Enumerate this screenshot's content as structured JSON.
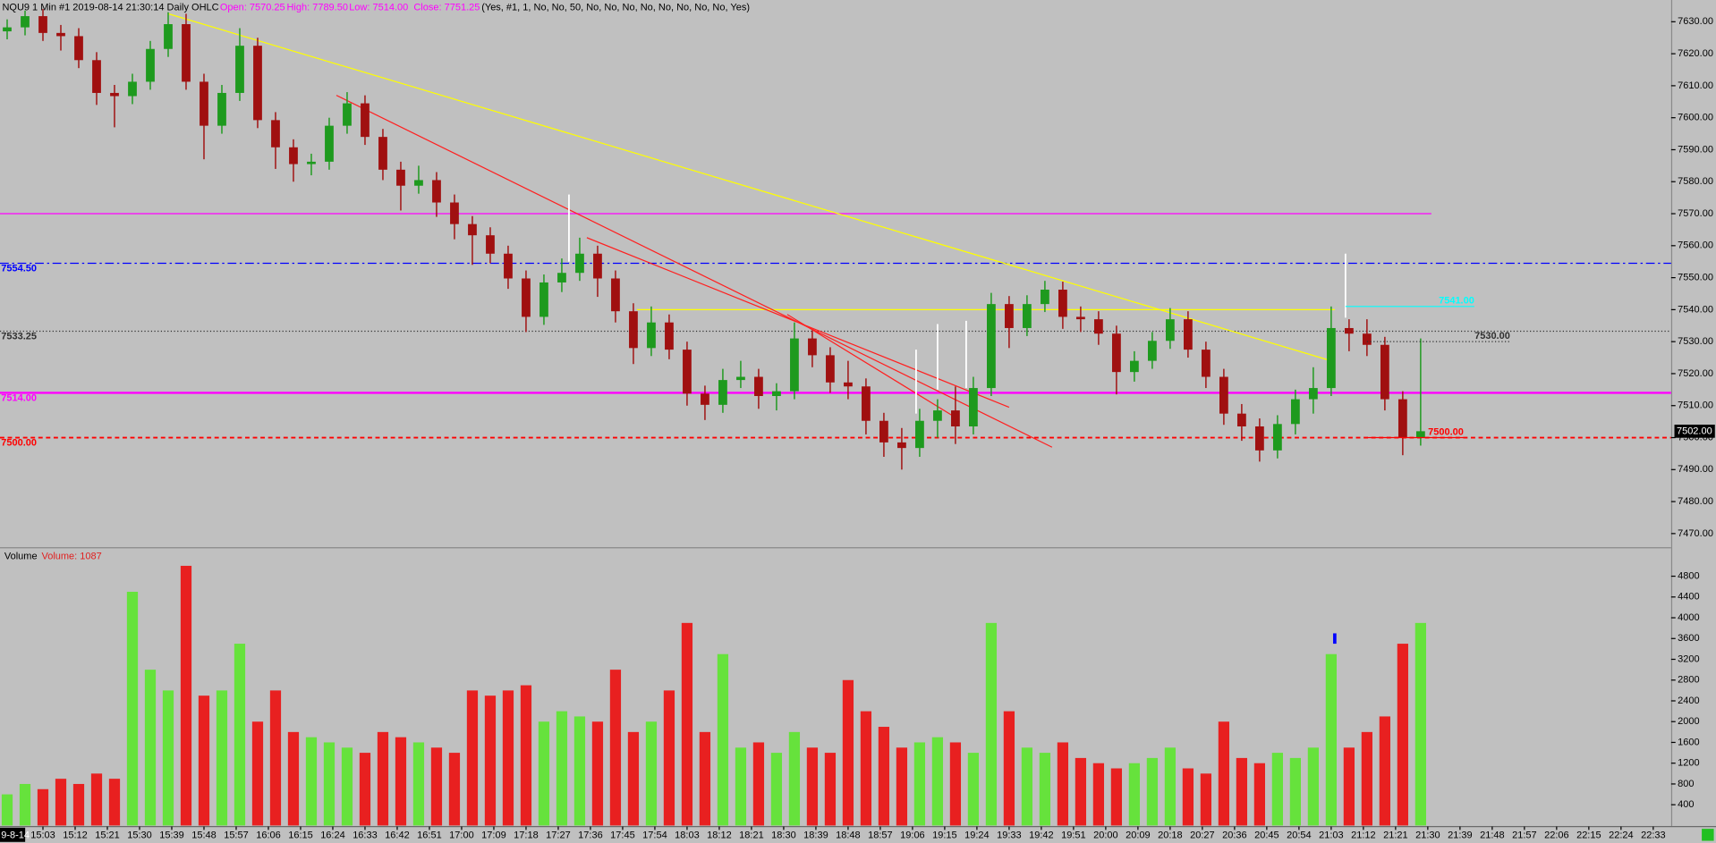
{
  "chart_data": {
    "type": "candlestick",
    "title": "NQU9  1 Min  #1 2019-08-14 21:30:14 Daily OHLC",
    "ohlc_labels": [
      {
        "text": "Open: 7570.25",
        "color": "#ff00ff"
      },
      {
        "text": "High: 7789.50",
        "color": "#ff00ff"
      },
      {
        "text": "Low: 7514.00",
        "color": "#ff00ff"
      },
      {
        "text": "Close: 7751.25",
        "color": "#ff00ff"
      }
    ],
    "settings_text": "(Yes, #1, 1, No, No, 50, No, No, No, No, No, No, No, No, Yes)",
    "date_label": "9-8-14",
    "up_color": "#1e9a1e",
    "down_color": "#a01010",
    "x": [
      "14:53",
      "14:58",
      "15:03",
      "15:08",
      "15:13",
      "15:18",
      "15:23",
      "15:28",
      "15:33",
      "15:38",
      "15:43",
      "15:48",
      "15:53",
      "15:58",
      "16:03",
      "16:08",
      "16:13",
      "16:18",
      "16:23",
      "16:28",
      "16:33",
      "16:38",
      "16:43",
      "16:48",
      "16:53",
      "16:58",
      "17:03",
      "17:08",
      "17:13",
      "17:18",
      "17:23",
      "17:28",
      "17:33",
      "17:38",
      "17:43",
      "17:48",
      "17:53",
      "17:58",
      "18:03",
      "18:08",
      "18:13",
      "18:18",
      "18:23",
      "18:28",
      "18:33",
      "18:38",
      "18:43",
      "18:48",
      "18:53",
      "18:58",
      "19:03",
      "19:08",
      "19:13",
      "19:18",
      "19:23",
      "19:28",
      "19:33",
      "19:38",
      "19:43",
      "19:48",
      "19:53",
      "19:58",
      "20:03",
      "20:08",
      "20:13",
      "20:18",
      "20:23",
      "20:28",
      "20:33",
      "20:38",
      "20:43",
      "20:48",
      "20:53",
      "20:58",
      "21:03",
      "21:08",
      "21:13",
      "21:18",
      "21:23",
      "21:28"
    ],
    "open": [
      7627,
      7628.25,
      7631.75,
      7626.5,
      7625.5,
      7618,
      7607.75,
      7606.75,
      7611.25,
      7621.5,
      7629.25,
      7611.25,
      7597.5,
      7607.75,
      7622.5,
      7599.25,
      7590.75,
      7585.5,
      7586.25,
      7597.5,
      7604.5,
      7594,
      7583.75,
      7578.75,
      7580.5,
      7573.5,
      7566.75,
      7563.25,
      7557.5,
      7549.75,
      7537.75,
      7548.5,
      7551.5,
      7557.5,
      7549.75,
      7539.5,
      7528,
      7536,
      7527.5,
      7513.75,
      7510.25,
      7518,
      7519,
      7513,
      7514.5,
      7531,
      7525.75,
      7517.25,
      7516,
      7505.25,
      7498.5,
      7496.75,
      7505.25,
      7508.5,
      7503.5,
      7515.5,
      7541.75,
      7534.25,
      7541.75,
      7546.25,
      7537.75,
      7537,
      7532.5,
      7520.5,
      7524,
      7530.25,
      7537,
      7527.5,
      7519,
      7507.5,
      7503.5,
      7496,
      7504.25,
      7512,
      7515.5,
      7534.25,
      7532.5,
      7529,
      7512,
      7500
    ],
    "high": [
      7630.75,
      7633.5,
      7634,
      7629,
      7628,
      7620.5,
      7610.25,
      7613.75,
      7624,
      7633,
      7632.5,
      7613.75,
      7610.25,
      7628,
      7625,
      7601.75,
      7593.25,
      7588.75,
      7600,
      7608,
      7607,
      7596.5,
      7586.25,
      7585,
      7583,
      7576,
      7569.25,
      7565.75,
      7560,
      7552.25,
      7551,
      7556,
      7562.5,
      7560,
      7552.25,
      7542,
      7541,
      7538.5,
      7530,
      7516.25,
      7521.5,
      7524,
      7521.5,
      7517,
      7536,
      7533.5,
      7528.25,
      7524,
      7518.5,
      7507.75,
      7503,
      7509,
      7512,
      7516,
      7519,
      7545.25,
      7544.25,
      7544.5,
      7549,
      7548.75,
      7541,
      7539.5,
      7535,
      7527,
      7533,
      7540.5,
      7539.5,
      7530,
      7521.5,
      7510.5,
      7506,
      7507,
      7515,
      7522,
      7541,
      7537,
      7537,
      7531.5,
      7514.5,
      7531
    ],
    "low": [
      7624.5,
      7625.75,
      7624,
      7621,
      7615.5,
      7604,
      7597,
      7604.25,
      7608.75,
      7619,
      7608.75,
      7587,
      7595,
      7605.25,
      7596.75,
      7584,
      7580,
      7582,
      7583.75,
      7595,
      7591.5,
      7580.5,
      7571,
      7576.25,
      7569,
      7562,
      7554,
      7554.5,
      7546.5,
      7533,
      7535.25,
      7545.5,
      7549,
      7544,
      7536,
      7523,
      7525.5,
      7524.5,
      7510,
      7505.5,
      7507.75,
      7515.5,
      7509,
      7508.5,
      7512,
      7522,
      7514,
      7512,
      7501,
      7494,
      7490,
      7494,
      7500,
      7498,
      7501,
      7513,
      7528,
      7531.75,
      7539.25,
      7534,
      7533,
      7529,
      7513.5,
      7517.5,
      7521.5,
      7527.75,
      7525,
      7515.5,
      7504,
      7499,
      7492.5,
      7493.5,
      7501,
      7507.5,
      7513,
      7527,
      7525.5,
      7508.5,
      7494.5,
      7497.5
    ],
    "close": [
      7628.25,
      7631.75,
      7626.5,
      7625.5,
      7618,
      7607.75,
      7606.75,
      7611.25,
      7621.5,
      7629.25,
      7611.25,
      7597.5,
      7607.75,
      7622.5,
      7599.25,
      7590.75,
      7585.5,
      7586.25,
      7597.5,
      7604.5,
      7594,
      7583.75,
      7578.75,
      7580.5,
      7573.5,
      7566.75,
      7563.25,
      7557.5,
      7549.75,
      7537.75,
      7548.5,
      7551.5,
      7557.5,
      7549.75,
      7539.5,
      7528,
      7536,
      7527.5,
      7513.75,
      7510.25,
      7518,
      7519,
      7513,
      7514.5,
      7531,
      7525.75,
      7517.25,
      7516,
      7505.25,
      7498.5,
      7496.75,
      7505.25,
      7508.5,
      7503.5,
      7515.5,
      7541.75,
      7534.25,
      7541.75,
      7546.25,
      7537.75,
      7537,
      7532.5,
      7520.5,
      7524,
      7530.25,
      7537,
      7527.5,
      7519,
      7507.5,
      7503.5,
      7496,
      7504.25,
      7512,
      7515.5,
      7534.25,
      7532.5,
      7529,
      7512,
      7500,
      7502
    ],
    "xlim": [
      "14:51",
      "22:38"
    ],
    "xticks": [
      "15:03",
      "15:12",
      "15:21",
      "15:30",
      "15:39",
      "15:48",
      "15:57",
      "16:06",
      "16:15",
      "16:24",
      "16:33",
      "16:42",
      "16:51",
      "17:00",
      "17:09",
      "17:18",
      "17:27",
      "17:36",
      "17:45",
      "17:54",
      "18:03",
      "18:12",
      "18:21",
      "18:30",
      "18:39",
      "18:48",
      "18:57",
      "19:06",
      "19:15",
      "19:24",
      "19:33",
      "19:42",
      "19:51",
      "20:00",
      "20:09",
      "20:18",
      "20:27",
      "20:36",
      "20:45",
      "20:54",
      "21:03",
      "21:12",
      "21:21",
      "21:30",
      "21:39",
      "21:48",
      "21:57",
      "22:06",
      "22:15",
      "22:24",
      "22:33"
    ],
    "ylim": [
      7465.9,
      7636.8
    ],
    "yticks": [
      {
        "value": 7470,
        "label": "7470.00"
      },
      {
        "value": 7480,
        "label": "7480.00"
      },
      {
        "value": 7490,
        "label": "7490.00"
      },
      {
        "value": 7500,
        "label": "7500.00"
      },
      {
        "value": 7510,
        "label": "7510.00"
      },
      {
        "value": 7520,
        "label": "7520.00"
      },
      {
        "value": 7530,
        "label": "7530.00"
      },
      {
        "value": 7540,
        "label": "7540.00"
      },
      {
        "value": 7550,
        "label": "7550.00"
      },
      {
        "value": 7560,
        "label": "7560.00"
      },
      {
        "value": 7570,
        "label": "7570.00"
      },
      {
        "value": 7580,
        "label": "7580.00"
      },
      {
        "value": 7590,
        "label": "7590.00"
      },
      {
        "value": 7600,
        "label": "7600.00"
      },
      {
        "value": 7610,
        "label": "7610.00"
      },
      {
        "value": 7620,
        "label": "7620.00"
      },
      {
        "value": 7630,
        "label": "7630.00"
      }
    ],
    "levels": [
      {
        "value": 7570,
        "color": "#ff00ff",
        "style": "solid",
        "width": 1,
        "end": "21:31"
      },
      {
        "value": 7554.5,
        "label": "7554.50",
        "color": "#0000ff",
        "style": "dashdot",
        "width": 1
      },
      {
        "value": 7533.25,
        "label": "7533.25",
        "color": "#303030",
        "style": "dotted",
        "width": 1
      },
      {
        "value": 7514,
        "label": "7514.00",
        "color": "#ff00ff",
        "style": "solid",
        "width": 2
      },
      {
        "value": 7500,
        "label": "7500.00",
        "color": "#ff0000",
        "style": "dashed",
        "width": 1.5
      }
    ],
    "trendlines": [
      {
        "start": [
          "15:38",
          7632.5
        ],
        "end": [
          "21:03",
          7524
        ],
        "color": "#ffff00"
      },
      {
        "start": [
          "17:49",
          7540
        ],
        "end": [
          "21:04",
          7540
        ],
        "color": "#ffff00"
      },
      {
        "start": [
          "16:25",
          7607
        ],
        "end": [
          "19:45",
          7497
        ],
        "color": "#ff2020"
      },
      {
        "start": [
          "17:35",
          7562.5
        ],
        "end": [
          "19:33",
          7509.5
        ],
        "color": "#ff2020"
      },
      {
        "start": [
          "18:31",
          7538.5
        ],
        "end": [
          "19:17",
          7507
        ],
        "color": "#ff2020"
      }
    ],
    "spikes": [
      {
        "x": "17:30",
        "low": 7555,
        "high": 7576
      },
      {
        "x": "19:07",
        "low": 7507.5,
        "high": 7527.5
      },
      {
        "x": "19:13",
        "low": 7515,
        "high": 7535.5
      },
      {
        "x": "19:21",
        "low": 7515.5,
        "high": 7536.5
      },
      {
        "x": "21:07",
        "low": 7537.5,
        "high": 7557.5
      }
    ],
    "segments": [
      {
        "value": 7541,
        "label": "7541.00",
        "start": "21:07",
        "end": "21:43",
        "color": "#00ffff",
        "style": "solid"
      },
      {
        "value": 7530,
        "label": "7530.00",
        "start": "21:13",
        "end": "21:53",
        "color": "#303030",
        "style": "dotted"
      },
      {
        "value": 7500,
        "label": "7500.00",
        "start": "21:13",
        "end": "21:40",
        "color": "#ff0000",
        "style": "solid"
      }
    ],
    "last_price": {
      "value": 7502,
      "label": "7502.00"
    },
    "volume": {
      "title": "Volume",
      "label": "Volume: 1087",
      "up_color": "#66e23c",
      "down_color": "#e82020",
      "values": [
        600,
        800,
        700,
        900,
        800,
        1000,
        900,
        4500,
        3000,
        2600,
        5000,
        2500,
        2600,
        3500,
        2000,
        2600,
        1800,
        1700,
        1600,
        1500,
        1400,
        1800,
        1700,
        1600,
        1500,
        1400,
        2600,
        2500,
        2600,
        2700,
        2000,
        2200,
        2100,
        2000,
        3000,
        1800,
        2000,
        2600,
        3900,
        1800,
        3300,
        1500,
        1600,
        1400,
        1800,
        1500,
        1400,
        2800,
        2200,
        1900,
        1500,
        1600,
        1700,
        1600,
        1400,
        3900,
        2200,
        1500,
        1400,
        1600,
        1300,
        1200,
        1100,
        1200,
        1300,
        1500,
        1100,
        1000,
        2000,
        1300,
        1200,
        1400,
        1300,
        1500,
        3300,
        1500,
        1800,
        2100,
        3500,
        3900
      ],
      "ylim": [
        0,
        5305
      ],
      "yticks": [
        400,
        800,
        1200,
        1600,
        2000,
        2400,
        2800,
        3200,
        3600,
        4000,
        4400,
        4800
      ],
      "marker": {
        "x": "21:04",
        "low": 3500,
        "high": 3700,
        "color": "#0000ff"
      }
    }
  }
}
